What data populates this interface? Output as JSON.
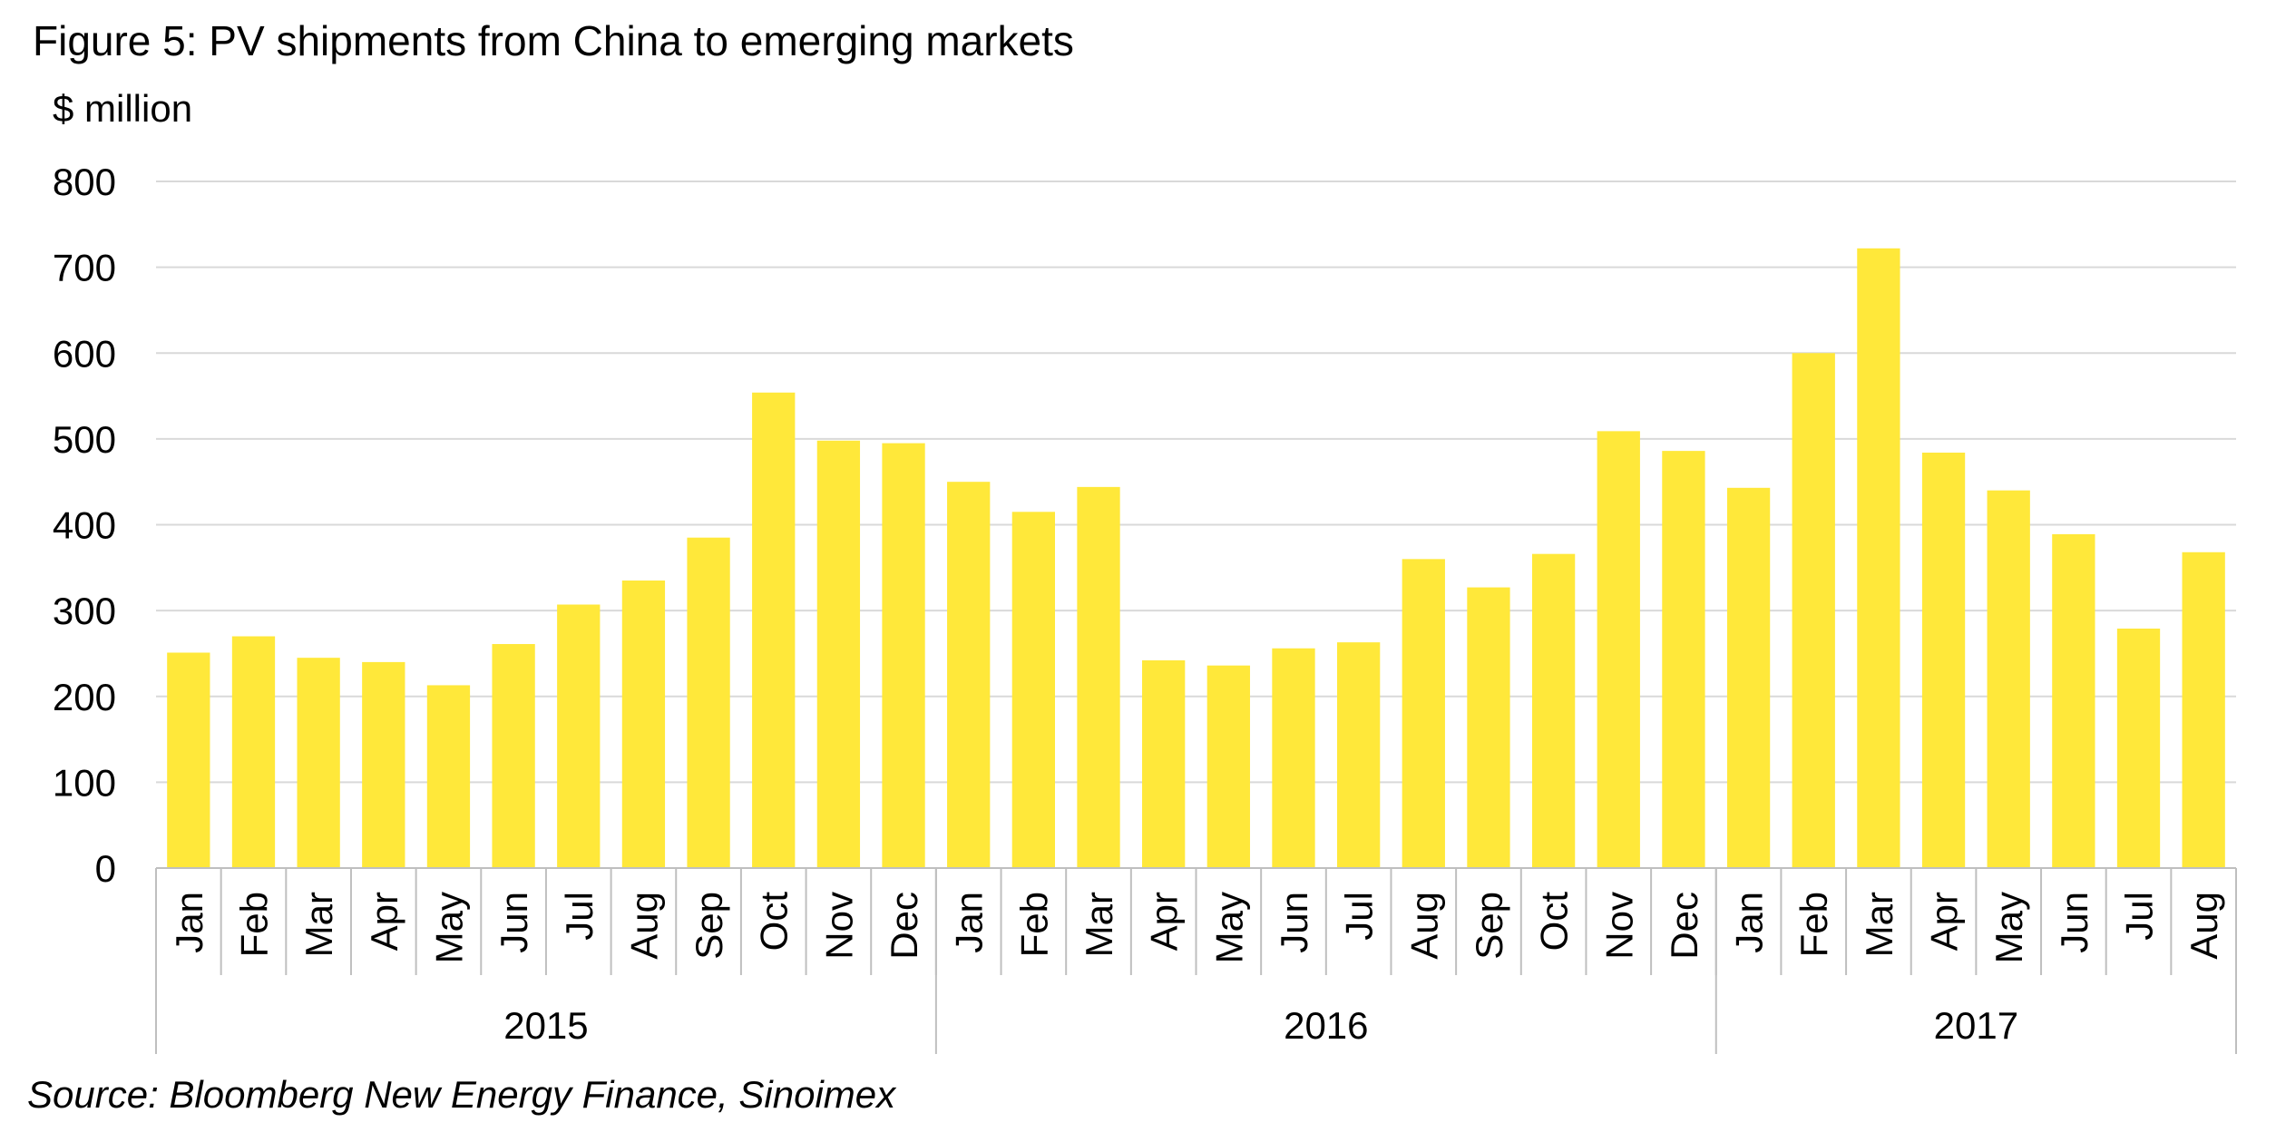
{
  "title": "Figure 5: PV shipments from China to emerging markets",
  "unit": "$ million",
  "source": "Source: Bloomberg New Energy Finance, Sinoimex",
  "colors": {
    "bar": "#FFE83A",
    "grid": "#D9D9D9",
    "axis": "#BFBFBF"
  },
  "chart_data": {
    "type": "bar",
    "title": "Figure 5: PV shipments from China to emerging markets",
    "ylabel": "$ million",
    "ylim": [
      0,
      800
    ],
    "yticks": [
      "0",
      "100",
      "200",
      "300",
      "400",
      "500",
      "600",
      "700",
      "800"
    ],
    "grid": true,
    "categories": [
      "Jan",
      "Feb",
      "Mar",
      "Apr",
      "May",
      "Jun",
      "Jul",
      "Aug",
      "Sep",
      "Oct",
      "Nov",
      "Dec",
      "Jan",
      "Feb",
      "Mar",
      "Apr",
      "May",
      "Jun",
      "Jul",
      "Aug",
      "Sep",
      "Oct",
      "Nov",
      "Dec",
      "Jan",
      "Feb",
      "Mar",
      "Apr",
      "May",
      "Jun",
      "Jul",
      "Aug"
    ],
    "groups": [
      {
        "label": "2015",
        "count": 12
      },
      {
        "label": "2016",
        "count": 12
      },
      {
        "label": "2017",
        "count": 8
      }
    ],
    "values": [
      251,
      270,
      245,
      240,
      213,
      261,
      307,
      335,
      385,
      554,
      498,
      495,
      450,
      415,
      444,
      242,
      236,
      256,
      263,
      360,
      327,
      366,
      509,
      486,
      443,
      600,
      722,
      484,
      440,
      389,
      279,
      368
    ]
  }
}
